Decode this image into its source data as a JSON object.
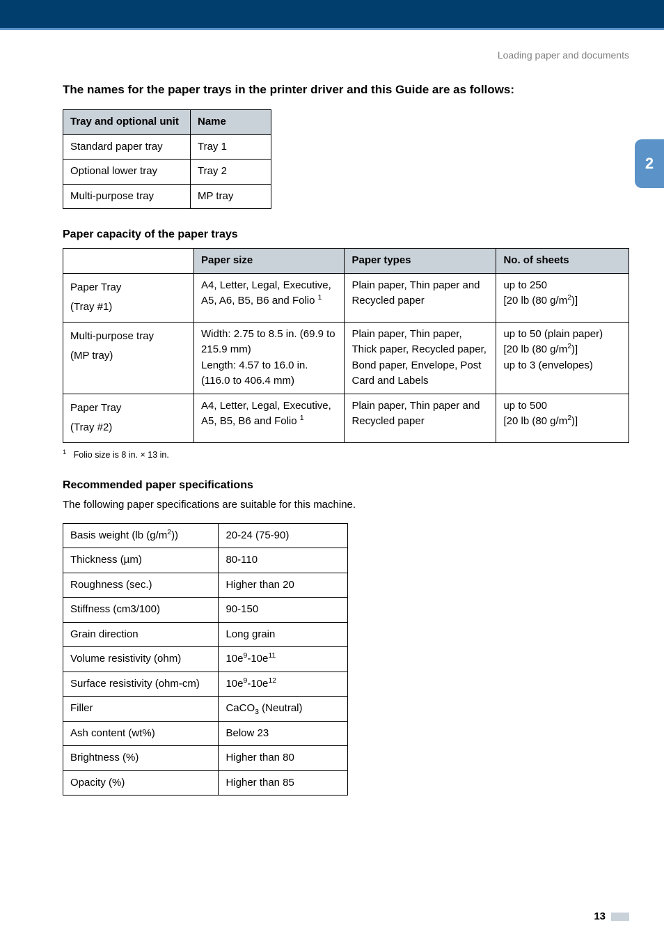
{
  "chapter_label": "Loading paper and documents",
  "side_tab_number": "2",
  "page_number": "13",
  "section_tray_names": {
    "title": "The names for the paper trays in the printer driver and this Guide are as follows:",
    "header": {
      "c1": "Tray and optional unit",
      "c2": "Name"
    },
    "rows": [
      {
        "c1": "Standard paper tray",
        "c2": "Tray 1"
      },
      {
        "c1": "Optional lower tray",
        "c2": "Tray 2"
      },
      {
        "c1": "Multi-purpose tray",
        "c2": "MP tray"
      }
    ]
  },
  "section_capacity": {
    "title": "Paper capacity of the paper trays",
    "header": {
      "c1": "Paper size",
      "c2": "Paper types",
      "c3": "No. of sheets"
    },
    "rows": [
      {
        "label_html": "Paper Tray<br>(Tray #1)",
        "size_html": "A4, Letter, Legal, Executive, A5, A6, B5, B6 and Folio <sup>1</sup>",
        "types_html": "Plain paper, Thin paper and Recycled paper",
        "sheets_html": "up to 250<br>[20 lb (80 g/m<sup>2</sup>)]"
      },
      {
        "label_html": "Multi-purpose tray<br>(MP tray)",
        "size_html": "Width: 2.75 to 8.5 in. (69.9 to 215.9 mm)<br>Length: 4.57 to 16.0 in. (116.0 to 406.4 mm)",
        "types_html": "Plain paper, Thin paper, Thick paper, Recycled paper, Bond paper, Envelope, Post Card and Labels",
        "sheets_html": "up to 50 (plain paper)<br>[20 lb (80 g/m<sup>2</sup>)]<br>up to 3 (envelopes)"
      },
      {
        "label_html": "Paper Tray<br>(Tray #2)",
        "size_html": "A4, Letter, Legal, Executive, A5, B5, B6 and Folio <sup>1</sup>",
        "types_html": "Plain paper, Thin paper and Recycled paper",
        "sheets_html": "up to 500<br>[20 lb (80 g/m<sup>2</sup>)]"
      }
    ],
    "footnote_html": "<span class='fnsup'>1</span>&nbsp;&nbsp;&nbsp;Folio size is 8 in. × 13 in."
  },
  "section_spec": {
    "title": "Recommended paper specifications",
    "intro": "The following paper specifications are suitable for this machine.",
    "rows": [
      {
        "c1_html": "Basis weight (lb (g/m<sup>2</sup>))",
        "c2_html": "20-24 (75-90)"
      },
      {
        "c1_html": "Thickness (µm)",
        "c2_html": "80-110"
      },
      {
        "c1_html": "Roughness (sec.)",
        "c2_html": "Higher than 20"
      },
      {
        "c1_html": "Stiffness (cm3/100)",
        "c2_html": "90-150"
      },
      {
        "c1_html": "Grain direction",
        "c2_html": "Long grain"
      },
      {
        "c1_html": "Volume resistivity (ohm)",
        "c2_html": "10e<sup>9</sup>-10e<sup>11</sup>"
      },
      {
        "c1_html": "Surface resistivity (ohm-cm)",
        "c2_html": "10e<sup>9</sup>-10e<sup>12</sup>"
      },
      {
        "c1_html": "Filler",
        "c2_html": "CaCO<sub>3</sub> (Neutral)"
      },
      {
        "c1_html": "Ash content (wt%)",
        "c2_html": "Below 23"
      },
      {
        "c1_html": "Brightness (%)",
        "c2_html": "Higher than 80"
      },
      {
        "c1_html": "Opacity (%)",
        "c2_html": "Higher than 85"
      }
    ]
  }
}
